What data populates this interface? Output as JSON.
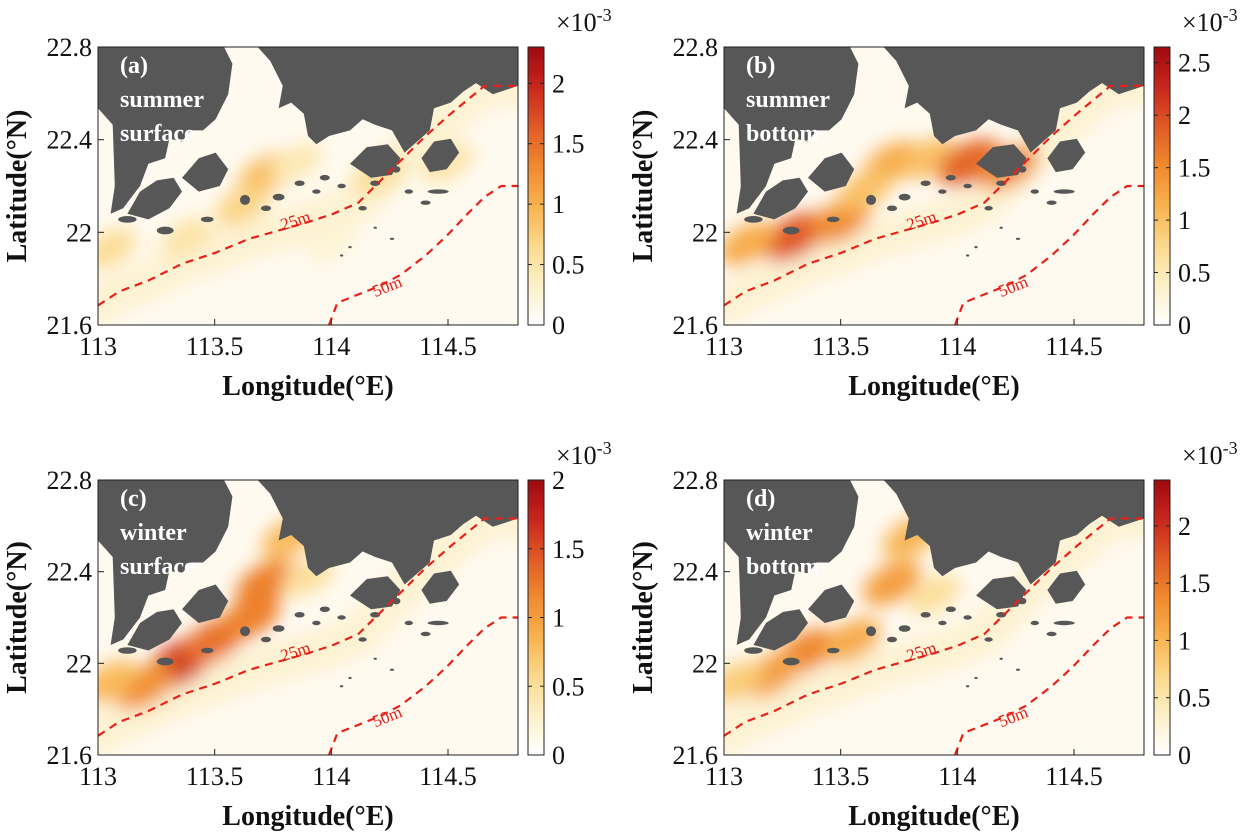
{
  "colors": {
    "land": "#575757",
    "isobath": "#e8221b",
    "colormap": [
      "#ffffff",
      "#fdf0c8",
      "#fbd98c",
      "#f8b24f",
      "#f08a2e",
      "#e05a26",
      "#c7261d",
      "#9e0a10"
    ]
  },
  "figure": {
    "xlabel": "Longitude(°E)",
    "ylabel": "Latitude(°N)",
    "xticks": [
      "113",
      "113.5",
      "114",
      "114.5"
    ],
    "yticks": [
      "21.6",
      "22",
      "22.4",
      "22.8"
    ],
    "isobath_labels": [
      "25m",
      "50m"
    ]
  },
  "chart_data": [
    {
      "type": "heatmap",
      "panel": "(a)",
      "season": "summer",
      "layer": "surface",
      "xlabel": "Longitude(°E)",
      "ylabel": "Latitude(°N)",
      "xlim": [
        113,
        114.8
      ],
      "ylim": [
        21.6,
        22.8
      ],
      "colorbar": {
        "multiplier": "×10",
        "exponent": "-3",
        "ticks": [
          "0",
          "0.5",
          "1",
          "1.5",
          "2"
        ],
        "tick_values": [
          0,
          0.5,
          1,
          1.5,
          2
        ],
        "max": 2.3
      },
      "hotspots": [
        {
          "lon": 113.72,
          "lat": 22.25,
          "value": 0.9
        },
        {
          "lon": 113.62,
          "lat": 22.12,
          "value": 0.7
        },
        {
          "lon": 113.05,
          "lat": 21.93,
          "value": 0.6
        },
        {
          "lon": 113.38,
          "lat": 21.98,
          "value": 0.5
        },
        {
          "lon": 113.85,
          "lat": 22.3,
          "value": 0.45
        },
        {
          "lon": 114.2,
          "lat": 22.25,
          "value": 0.6
        },
        {
          "lon": 114.0,
          "lat": 21.95,
          "value": 0.25
        },
        {
          "lon": 114.5,
          "lat": 22.3,
          "value": 0.5
        }
      ]
    },
    {
      "type": "heatmap",
      "panel": "(b)",
      "season": "summer",
      "layer": "bottom",
      "xlabel": "Longitude(°E)",
      "ylabel": "Latitude(°N)",
      "xlim": [
        113,
        114.8
      ],
      "ylim": [
        21.6,
        22.8
      ],
      "colorbar": {
        "multiplier": "×10",
        "exponent": "-3",
        "ticks": [
          "0",
          "0.5",
          "1",
          "1.5",
          "2",
          "2.5"
        ],
        "tick_values": [
          0,
          0.5,
          1,
          1.5,
          2,
          2.5
        ],
        "max": 2.65
      },
      "hotspots": [
        {
          "lon": 113.3,
          "lat": 21.98,
          "value": 1.9
        },
        {
          "lon": 113.5,
          "lat": 22.05,
          "value": 1.5
        },
        {
          "lon": 113.1,
          "lat": 21.95,
          "value": 1.2
        },
        {
          "lon": 113.72,
          "lat": 22.3,
          "value": 1.2
        },
        {
          "lon": 113.88,
          "lat": 22.32,
          "value": 1.0
        },
        {
          "lon": 114.05,
          "lat": 22.3,
          "value": 1.8
        },
        {
          "lon": 114.22,
          "lat": 22.28,
          "value": 1.5
        },
        {
          "lon": 113.6,
          "lat": 22.18,
          "value": 1.0
        }
      ]
    },
    {
      "type": "heatmap",
      "panel": "(c)",
      "season": "winter",
      "layer": "surface",
      "xlabel": "Longitude(°E)",
      "ylabel": "Latitude(°N)",
      "xlim": [
        113,
        114.8
      ],
      "ylim": [
        21.6,
        22.8
      ],
      "colorbar": {
        "multiplier": "×10",
        "exponent": "-3",
        "ticks": [
          "0",
          "0.5",
          "1",
          "1.5",
          "2"
        ],
        "tick_values": [
          0,
          0.5,
          1,
          1.5,
          2
        ],
        "max": 2.0
      },
      "hotspots": [
        {
          "lon": 113.35,
          "lat": 22.0,
          "value": 1.6
        },
        {
          "lon": 113.5,
          "lat": 22.1,
          "value": 1.3
        },
        {
          "lon": 113.2,
          "lat": 21.9,
          "value": 1.1
        },
        {
          "lon": 113.72,
          "lat": 22.35,
          "value": 1.2
        },
        {
          "lon": 113.65,
          "lat": 22.2,
          "value": 1.2
        },
        {
          "lon": 113.05,
          "lat": 21.92,
          "value": 0.8
        },
        {
          "lon": 113.82,
          "lat": 22.55,
          "value": 0.8
        },
        {
          "lon": 113.9,
          "lat": 22.38,
          "value": 0.5
        }
      ]
    },
    {
      "type": "heatmap",
      "panel": "(d)",
      "season": "winter",
      "layer": "bottom",
      "xlabel": "Longitude(°E)",
      "ylabel": "Latitude(°N)",
      "xlim": [
        113,
        114.8
      ],
      "ylim": [
        21.6,
        22.8
      ],
      "colorbar": {
        "multiplier": "×10",
        "exponent": "-3",
        "ticks": [
          "0",
          "0.5",
          "1",
          "1.5",
          "2"
        ],
        "tick_values": [
          0,
          0.5,
          1,
          1.5,
          2
        ],
        "max": 2.4
      },
      "hotspots": [
        {
          "lon": 113.35,
          "lat": 22.05,
          "value": 1.4
        },
        {
          "lon": 113.2,
          "lat": 21.95,
          "value": 1.2
        },
        {
          "lon": 113.55,
          "lat": 22.1,
          "value": 1.1
        },
        {
          "lon": 113.72,
          "lat": 22.35,
          "value": 1.2
        },
        {
          "lon": 113.8,
          "lat": 22.55,
          "value": 1.0
        },
        {
          "lon": 113.05,
          "lat": 21.92,
          "value": 0.8
        },
        {
          "lon": 113.9,
          "lat": 22.3,
          "value": 0.6
        }
      ]
    }
  ]
}
